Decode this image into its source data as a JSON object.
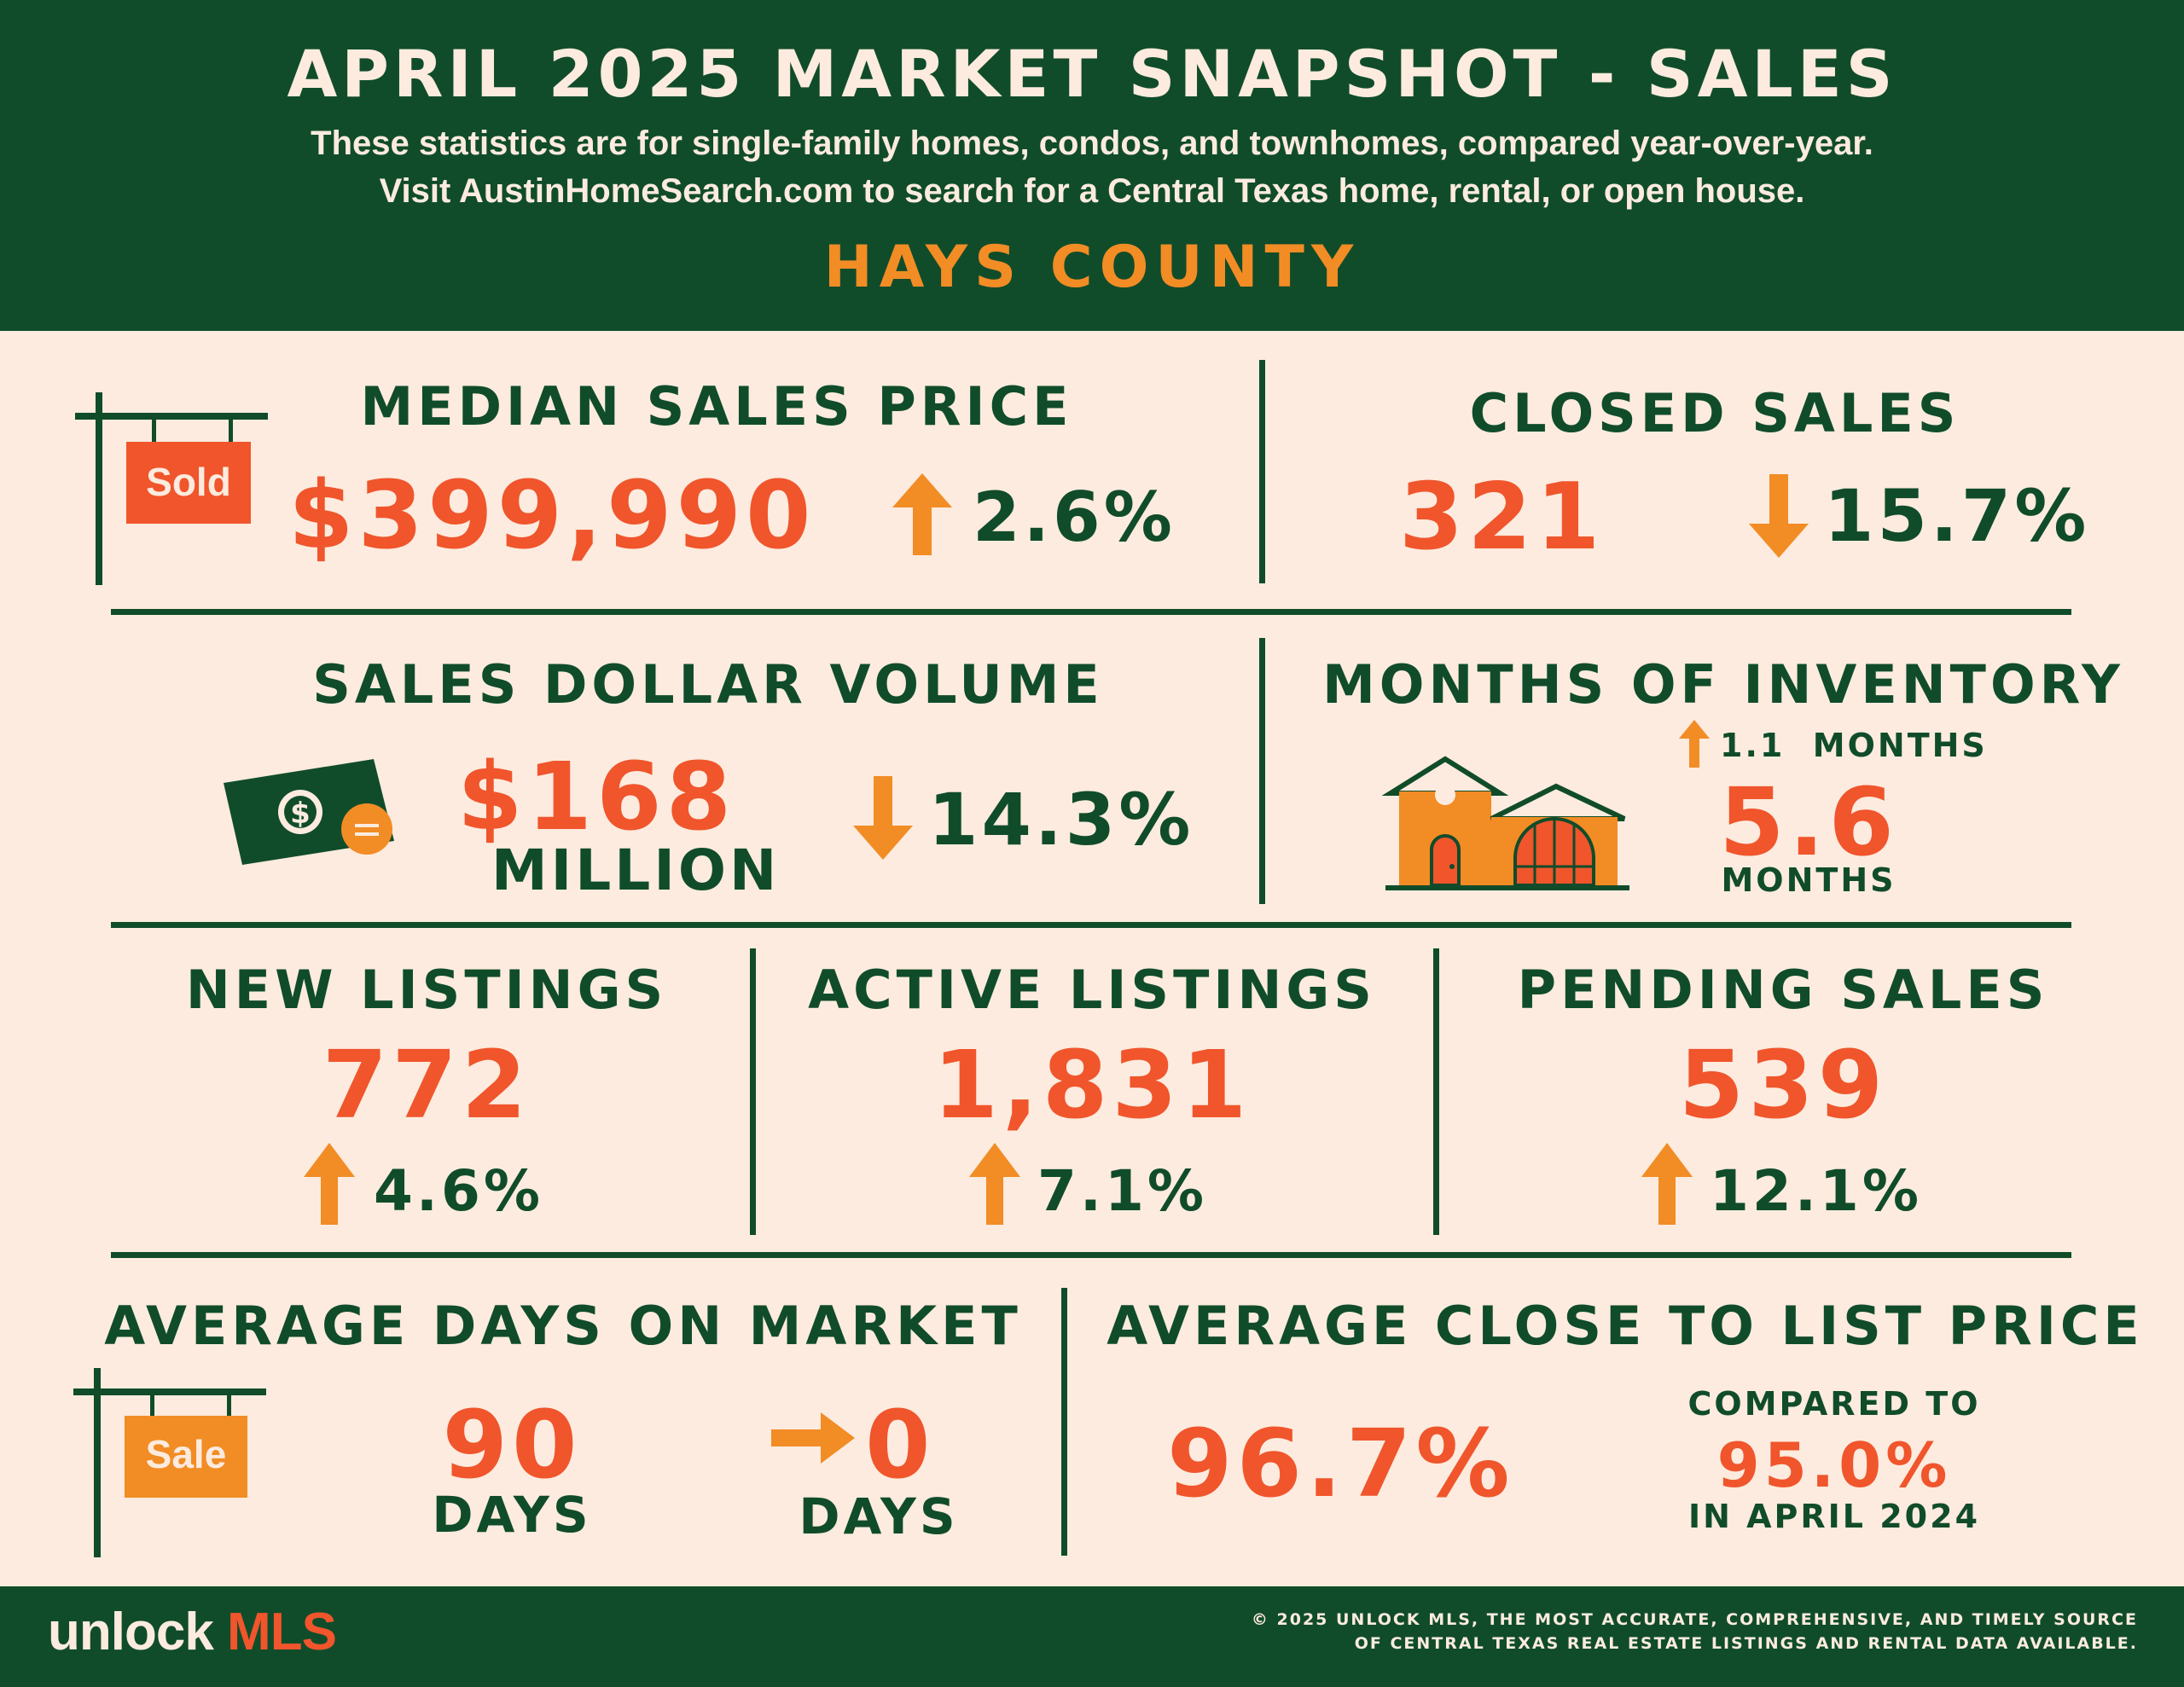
{
  "header": {
    "title": "APRIL 2025 MARKET SNAPSHOT - SALES",
    "subtitle_line1": "These statistics are for single-family homes, condos, and townhomes, compared year-over-year.",
    "subtitle_line2": "Visit AustinHomeSearch.com to search for a Central Texas home, rental, or open house.",
    "region": "HAYS COUNTY"
  },
  "stats": {
    "median_sales_price": {
      "label": "MEDIAN SALES PRICE",
      "value": "$399,990",
      "change": "2.6%",
      "direction": "up",
      "sign_text": "Sold"
    },
    "closed_sales": {
      "label": "CLOSED SALES",
      "value": "321",
      "change": "15.7%",
      "direction": "down"
    },
    "sales_dollar_volume": {
      "label": "SALES DOLLAR VOLUME",
      "value": "$168",
      "unit": "MILLION",
      "change": "14.3%",
      "direction": "down"
    },
    "months_of_inventory": {
      "label": "MONTHS OF INVENTORY",
      "change": "1.1  MONTHS",
      "direction": "up",
      "value": "5.6",
      "unit": "MONTHS"
    },
    "new_listings": {
      "label": "NEW LISTINGS",
      "value": "772",
      "change": "4.6%",
      "direction": "up"
    },
    "active_listings": {
      "label": "ACTIVE LISTINGS",
      "value": "1,831",
      "change": "7.1%",
      "direction": "up"
    },
    "pending_sales": {
      "label": "PENDING SALES",
      "value": "539",
      "change": "12.1%",
      "direction": "up"
    },
    "average_days_on_market": {
      "label": "AVERAGE DAYS ON MARKET",
      "value": "90",
      "unit": "DAYS",
      "change": "0",
      "change_unit": "DAYS",
      "direction": "flat",
      "sign_text": "Sale"
    },
    "average_close_to_list": {
      "label": "AVERAGE CLOSE TO LIST PRICE",
      "value": "96.7%",
      "compare_label": "COMPARED TO",
      "compare_value": "95.0%",
      "compare_period": "IN APRIL 2024"
    }
  },
  "footer": {
    "logo_word": "unlock",
    "logo_accent": "MLS",
    "copyright_line1": "© 2025 UNLOCK MLS, THE MOST ACCURATE, COMPREHENSIVE, AND TIMELY SOURCE",
    "copyright_line2": "OF CENTRAL TEXAS REAL ESTATE LISTINGS AND RENTAL DATA AVAILABLE."
  },
  "colors": {
    "green": "#104c2a",
    "cream": "#fcebde",
    "orange_red": "#f0552c",
    "amber": "#f28c25"
  },
  "icons": [
    "sold-sign-icon",
    "up-arrow-icon",
    "down-arrow-icon",
    "dollar-bill-icon",
    "coin-icon",
    "house-icon",
    "sale-sign-icon",
    "right-arrow-icon"
  ]
}
